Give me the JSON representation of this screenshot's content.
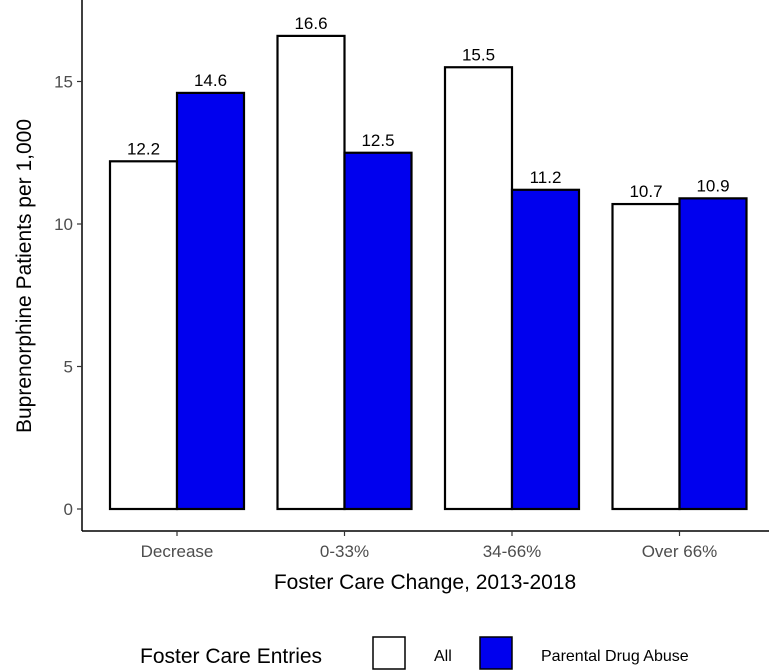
{
  "chart_data": {
    "type": "bar",
    "categories": [
      "Decrease",
      "0-33%",
      "34-66%",
      "Over 66%"
    ],
    "series": [
      {
        "name": "All",
        "values": [
          12.2,
          16.6,
          15.5,
          10.7
        ],
        "color": "#ffffff"
      },
      {
        "name": "Parental Drug Abuse",
        "values": [
          14.6,
          12.5,
          11.2,
          10.9
        ],
        "color": "#0000ee"
      }
    ],
    "xlabel": "Foster Care Change, 2013-2018",
    "ylabel": "Buprenorphine Patients per 1,000",
    "ylim": [
      0,
      17.5
    ],
    "yticks": [
      0,
      5,
      10,
      15
    ],
    "grid": false,
    "legend": {
      "title": "Foster Care Entries",
      "position": "bottom"
    }
  }
}
